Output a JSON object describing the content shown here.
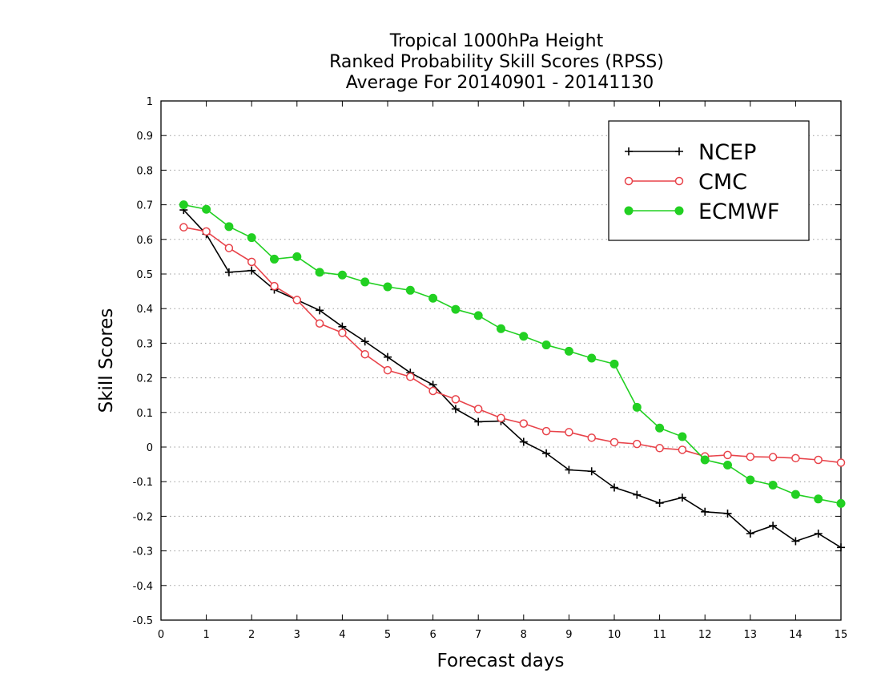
{
  "chart_data": {
    "type": "line",
    "title": [
      "Tropical 1000hPa Height",
      "Ranked Probability Skill Scores (RPSS)",
      "Average For 20140901 - 20141130"
    ],
    "xlabel": "Forecast days",
    "ylabel": "Skill Scores",
    "xlim": [
      0,
      15
    ],
    "ylim": [
      -0.5,
      1
    ],
    "x_ticks": [
      "0",
      "1",
      "2",
      "3",
      "4",
      "5",
      "6",
      "7",
      "8",
      "9",
      "10",
      "11",
      "12",
      "13",
      "14",
      "15"
    ],
    "y_ticks": [
      "-0.5",
      "-0.4",
      "-0.3",
      "-0.2",
      "-0.1",
      "0",
      "0.1",
      "0.2",
      "0.3",
      "0.4",
      "0.5",
      "0.6",
      "0.7",
      "0.8",
      "0.9",
      "1"
    ],
    "grid": true,
    "legend_position": "top-right",
    "x": [
      0.5,
      1,
      1.5,
      2,
      2.5,
      3,
      3.5,
      4,
      4.5,
      5,
      5.5,
      6,
      6.5,
      7,
      7.5,
      8,
      8.5,
      9,
      9.5,
      10,
      10.5,
      11,
      11.5,
      12,
      12.5,
      13,
      13.5,
      14,
      14.5,
      15
    ],
    "series": [
      {
        "name": "NCEP",
        "color": "#000000",
        "marker": "plus",
        "values": [
          0.685,
          0.615,
          0.505,
          0.51,
          0.455,
          0.425,
          0.395,
          0.348,
          0.305,
          0.26,
          0.215,
          0.18,
          0.11,
          0.073,
          0.075,
          0.015,
          -0.018,
          -0.066,
          -0.07,
          -0.117,
          -0.138,
          -0.162,
          -0.146,
          -0.187,
          -0.192,
          -0.25,
          -0.227,
          -0.272,
          -0.25,
          -0.29
        ]
      },
      {
        "name": "CMC",
        "color": "#e8434a",
        "marker": "open-circle",
        "values": [
          0.635,
          0.623,
          0.575,
          0.535,
          0.465,
          0.425,
          0.357,
          0.33,
          0.268,
          0.222,
          0.203,
          0.162,
          0.138,
          0.11,
          0.084,
          0.068,
          0.046,
          0.043,
          0.027,
          0.014,
          0.009,
          -0.003,
          -0.008,
          -0.027,
          -0.023,
          -0.028,
          -0.029,
          -0.032,
          -0.037,
          -0.045
        ]
      },
      {
        "name": "ECMWF",
        "color": "#22d022",
        "marker": "filled-circle",
        "values": [
          0.7,
          0.687,
          0.637,
          0.605,
          0.543,
          0.55,
          0.505,
          0.497,
          0.477,
          0.463,
          0.453,
          0.43,
          0.398,
          0.38,
          0.342,
          0.32,
          0.295,
          0.277,
          0.257,
          0.24,
          0.115,
          0.055,
          0.03,
          -0.037,
          -0.052,
          -0.095,
          -0.11,
          -0.137,
          -0.15,
          -0.163
        ]
      }
    ]
  }
}
